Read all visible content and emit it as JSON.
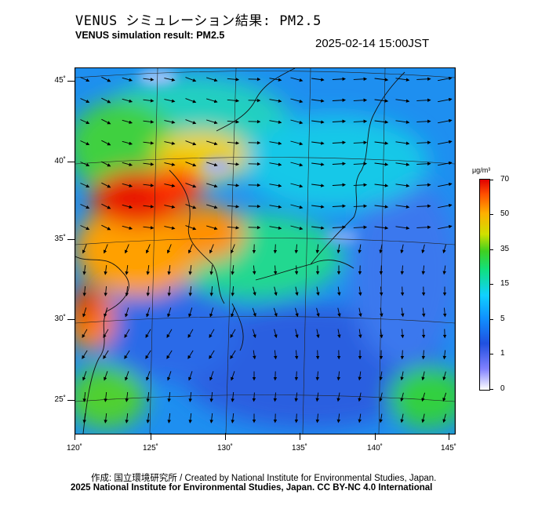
{
  "header": {
    "title_ja": "VENUS シミュレーション結果: PM2.5",
    "title_en": "VENUS simulation result: PM2.5",
    "timestamp": "2025-02-14 15:00JST"
  },
  "map": {
    "latitude_labels": [
      "45˚",
      "40˚",
      "35˚",
      "30˚",
      "25˚"
    ],
    "longitude_labels": [
      "120˚",
      "125˚",
      "130˚",
      "135˚",
      "140˚",
      "145˚"
    ],
    "field": "PM2.5 concentration with wind vectors"
  },
  "colorbar": {
    "unit": "μg/m³",
    "ticks": [
      "70",
      "50",
      "35",
      "15",
      "5",
      "1",
      "0"
    ]
  },
  "footer": {
    "credit": "作成: 国立環境研究所 / Created by National Institute for Environmental Studies, Japan.",
    "license": "2025 National Institute for Environmental Studies, Japan. CC BY-NC 4.0 International"
  },
  "colors": {
    "high": "#e00000",
    "mid_high": "#ffb000",
    "mid": "#40d020",
    "low_mid": "#10d0ff",
    "low": "#2050e0",
    "lowest": "#ffffff"
  }
}
